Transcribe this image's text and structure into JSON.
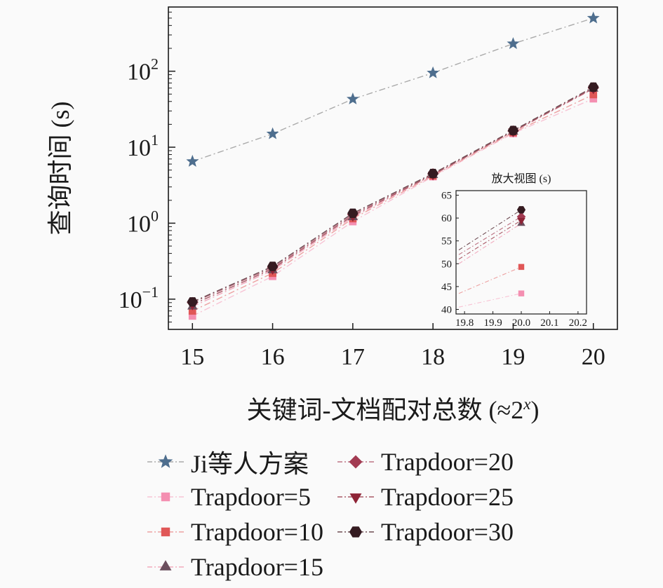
{
  "figure": {
    "ylabel": "查询时间 (s)",
    "xlabel_prefix": "关键词-文档配对总数 (≈2",
    "xlabel_sup": "x",
    "xlabel_suffix": ")"
  },
  "chart_data": {
    "type": "line",
    "title": "",
    "xlabel": "关键词-文档配对总数 (≈2^x)",
    "ylabel": "查询时间 (s)",
    "yscale": "log",
    "grid": false,
    "legend_position": "below",
    "x": [
      15,
      16,
      17,
      18,
      19,
      20
    ],
    "xticks": [
      15,
      16,
      17,
      18,
      19,
      20
    ],
    "xlim": [
      14.7,
      20.3
    ],
    "ylim": [
      0.04,
      700
    ],
    "yticks": [
      {
        "value": 0.1,
        "base": "10",
        "exp": "−1"
      },
      {
        "value": 1,
        "base": "10",
        "exp": "0"
      },
      {
        "value": 10,
        "base": "10",
        "exp": "1"
      },
      {
        "value": 100,
        "base": "10",
        "exp": "2"
      }
    ],
    "series": [
      {
        "name": "Ji等人方案",
        "marker": "star",
        "color": "#4e6e8e",
        "line_color": "#aaaaaa",
        "values": [
          6.5,
          15,
          43,
          95,
          230,
          500
        ]
      },
      {
        "name": "Trapdoor=5",
        "marker": "square",
        "color": "#f48fb1",
        "line_color": "#f8c3d4",
        "values": [
          0.06,
          0.2,
          1.05,
          4.1,
          15.2,
          43.5
        ]
      },
      {
        "name": "Trapdoor=10",
        "marker": "square",
        "color": "#e05757",
        "line_color": "#eda1a1",
        "values": [
          0.07,
          0.22,
          1.15,
          4.2,
          15.6,
          49.3
        ]
      },
      {
        "name": "Trapdoor=15",
        "marker": "triangle-up",
        "color": "#6b4f5e",
        "line_color": "#f2a9bd",
        "values": [
          0.08,
          0.24,
          1.2,
          4.3,
          16.0,
          58.8
        ]
      },
      {
        "name": "Trapdoor=20",
        "marker": "diamond",
        "color": "#a23b52",
        "line_color": "#bd7484",
        "values": [
          0.09,
          0.26,
          1.3,
          4.45,
          16.3,
          60.3
        ]
      },
      {
        "name": "Trapdoor=25",
        "marker": "triangle-down",
        "color": "#8e2436",
        "line_color": "#aa5b68",
        "values": [
          0.085,
          0.25,
          1.25,
          4.35,
          16.1,
          59.5
        ]
      },
      {
        "name": "Trapdoor=30",
        "marker": "hexagon",
        "color": "#351b21",
        "line_color": "#6e4c53",
        "values": [
          0.092,
          0.27,
          1.35,
          4.5,
          16.6,
          61.8
        ]
      }
    ],
    "inset": {
      "title": "放大视图 (s)",
      "xlim": [
        19.77,
        20.23
      ],
      "ylim": [
        39,
        66
      ],
      "xticks": [
        "19.8",
        "19.9",
        "20.0",
        "20.1",
        "20.2"
      ],
      "yticks": [
        40,
        45,
        50,
        55,
        60,
        65
      ],
      "series": [
        {
          "name": "Trapdoor=5",
          "x": [
            19.78,
            20.0
          ],
          "values": [
            40.5,
            43.5
          ]
        },
        {
          "name": "Trapdoor=10",
          "x": [
            19.78,
            20.0
          ],
          "values": [
            43.5,
            49.3
          ]
        },
        {
          "name": "Trapdoor=15",
          "x": [
            19.78,
            20.0
          ],
          "values": [
            50.0,
            58.8
          ]
        },
        {
          "name": "Trapdoor=20",
          "x": [
            19.78,
            20.0
          ],
          "values": [
            52.0,
            60.3
          ]
        },
        {
          "name": "Trapdoor=25",
          "x": [
            19.78,
            20.0
          ],
          "values": [
            51.0,
            59.5
          ]
        },
        {
          "name": "Trapdoor=30",
          "x": [
            19.78,
            20.0
          ],
          "values": [
            53.0,
            61.8
          ]
        }
      ]
    }
  }
}
